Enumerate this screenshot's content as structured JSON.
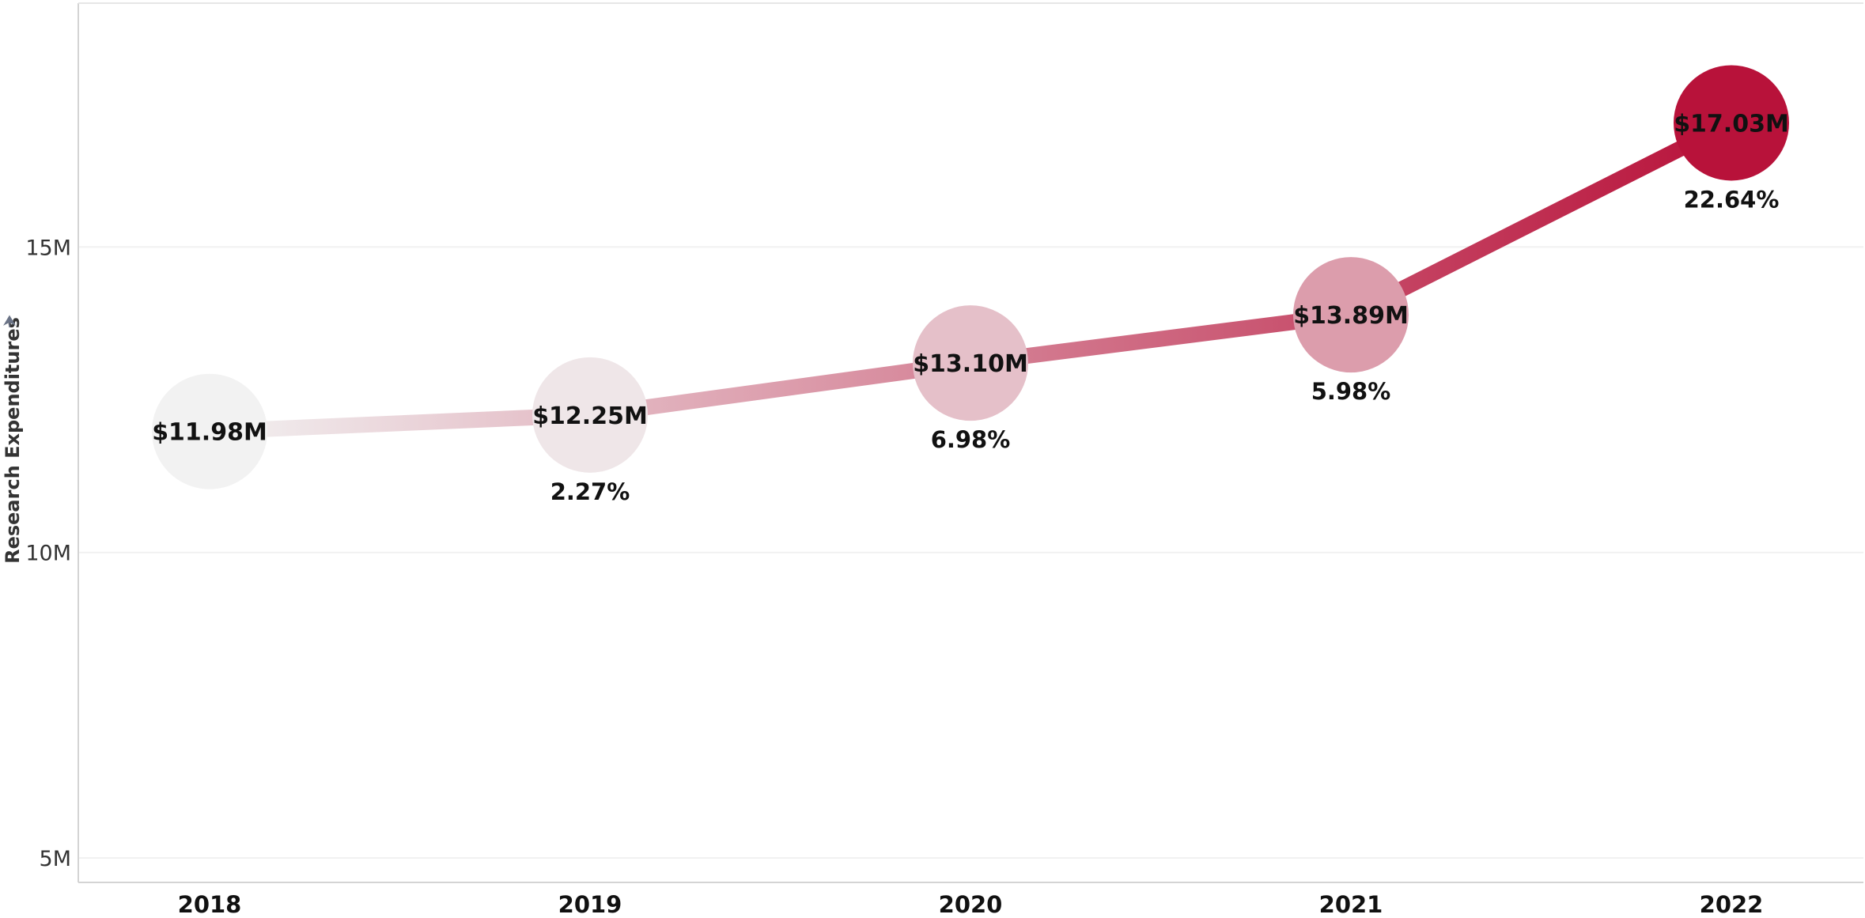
{
  "chart_data": {
    "type": "line",
    "title": "",
    "xlabel": "",
    "ylabel": "Research Expenditures",
    "x": [
      "2018",
      "2019",
      "2020",
      "2021",
      "2022"
    ],
    "series": [
      {
        "values": [
          11980000,
          12250000,
          13100000,
          13890000,
          17030000
        ],
        "value_labels": [
          "$11.98M",
          "$12.25M",
          "$13.10M",
          "$13.89M",
          "$17.03M"
        ],
        "change_labels": [
          "",
          "2.27%",
          "6.98%",
          "5.98%",
          "22.64%"
        ]
      }
    ],
    "ylim": [
      4600000,
      18990000
    ],
    "yticks": [
      5000000,
      10000000,
      15000000
    ],
    "ytick_labels": [
      "5M",
      "10M",
      "15M"
    ],
    "grid": true,
    "legend": "none",
    "colors": {
      "low": "#f2f2f2",
      "high": "#b8123a",
      "gridline": "#f1f1f1",
      "frame": "#d4d4d4",
      "sort_icon": "#6a7386"
    }
  }
}
